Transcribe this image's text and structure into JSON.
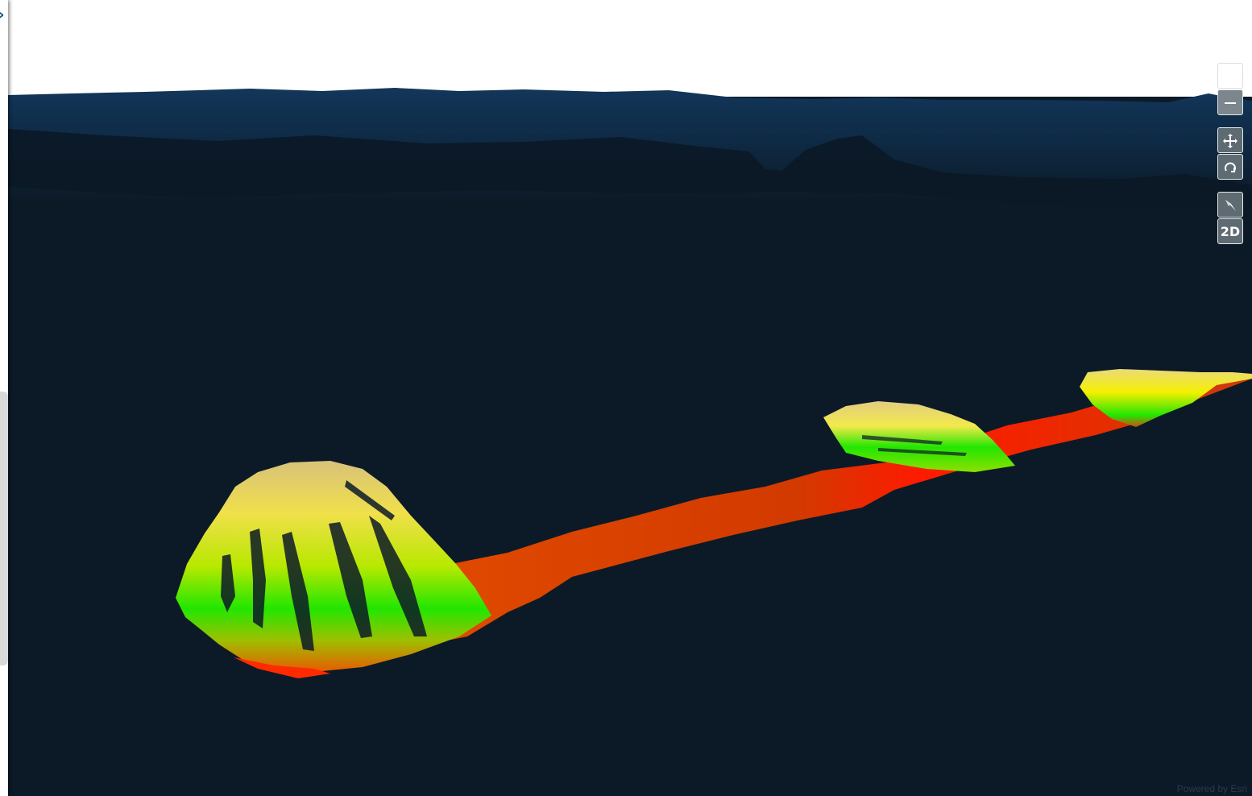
{
  "map": {
    "view_mode_label": "2D",
    "attribution": "Powered by Esri"
  },
  "toolbar": {
    "zoom_in_icon": "plus-icon",
    "zoom_out_icon": "minus-icon",
    "pan_icon": "move-icon",
    "rotate_icon": "rotate-icon",
    "compass_icon": "compass-icon"
  },
  "colors": {
    "ocean_floor": "#0c1a27",
    "horizon": "#0f2d4a",
    "depth_shallow": "#e8d27a",
    "depth_mid": "#22e600",
    "depth_deep": "#ff1a00"
  }
}
